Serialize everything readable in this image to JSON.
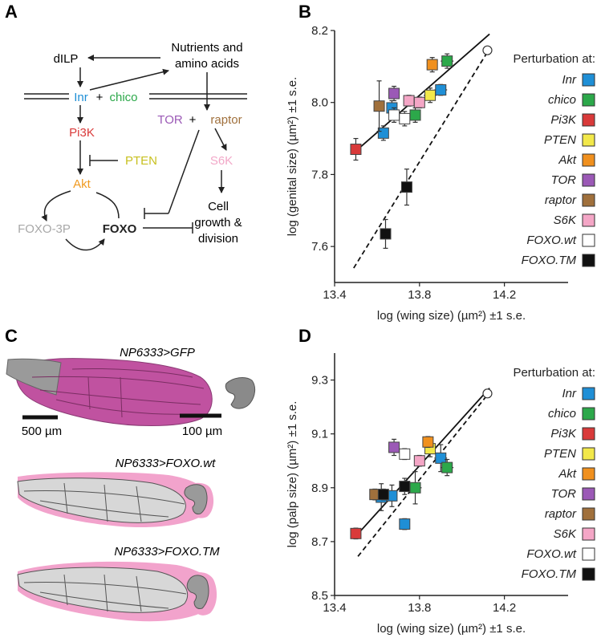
{
  "panels": {
    "A": "A",
    "B": "B",
    "C": "C",
    "D": "D"
  },
  "diagram": {
    "dilp": "dILP",
    "nutrients_line1": "Nutrients and",
    "nutrients_line2": "amino acids",
    "inr": "Inr",
    "plus1": "+",
    "chico": "chico",
    "pi3k": "Pi3K",
    "pten": "PTEN",
    "akt": "Akt",
    "tor": "TOR",
    "plus2": "+",
    "raptor": "raptor",
    "s6k": "S6K",
    "foxo3p": "FOXO-3P",
    "foxo": "FOXO",
    "cell_line1": "Cell",
    "cell_line2": "growth &",
    "cell_line3": "division",
    "colors": {
      "inr": "#1f8fd6",
      "chico": "#2ca84a",
      "pi3k": "#d93a3a",
      "pten": "#c8c020",
      "akt": "#f09a20",
      "tor": "#9b59b6",
      "raptor": "#a0703c",
      "s6k": "#f2a8c8",
      "foxo3p": "#a8a8a8",
      "foxo": "#222222"
    }
  },
  "panelC": {
    "label1": "NP6333>GFP",
    "label2": "NP6333>FOXO.wt",
    "label3": "NP6333>FOXO.TM",
    "scale_wing": "500 µm",
    "scale_genital": "100 µm"
  },
  "legend": {
    "title": "Perturbation at:",
    "entries": [
      {
        "name": "Inr",
        "color": "#1f8fd6"
      },
      {
        "name": "chico",
        "color": "#2ca84a"
      },
      {
        "name": "Pi3K",
        "color": "#d93a3a"
      },
      {
        "name": "PTEN",
        "color": "#f2e84a"
      },
      {
        "name": "Akt",
        "color": "#f0901e"
      },
      {
        "name": "TOR",
        "color": "#9b59b6"
      },
      {
        "name": "raptor",
        "color": "#a0703c"
      },
      {
        "name": "S6K",
        "color": "#f4a6c6"
      },
      {
        "name": "FOXO.wt",
        "color": "#ffffff"
      },
      {
        "name": "FOXO.TM",
        "color": "#111111"
      }
    ]
  },
  "chart_data": [
    {
      "type": "scatter",
      "panel": "B",
      "xlabel": "log (wing size) (µm²) ±1 s.e.",
      "ylabel": "log (genital size) (µm²) ±1 s.e.",
      "xlim": [
        13.4,
        14.5
      ],
      "ylim": [
        7.5,
        8.2
      ],
      "xticks": [
        "13.4",
        "13.8",
        "14.2"
      ],
      "yticks": [
        "7.6",
        "7.8",
        "8.0",
        "8.2"
      ],
      "points": [
        {
          "group": "Inr",
          "x": 13.63,
          "y": 7.915,
          "xerr": 0.02,
          "yerr": 0.02
        },
        {
          "group": "Inr",
          "x": 13.67,
          "y": 7.985,
          "xerr": 0.02,
          "yerr": 0.02
        },
        {
          "group": "Inr",
          "x": 13.9,
          "y": 8.035,
          "xerr": 0.03,
          "yerr": 0.015
        },
        {
          "group": "chico",
          "x": 13.78,
          "y": 7.965,
          "xerr": 0.02,
          "yerr": 0.02
        },
        {
          "group": "chico",
          "x": 13.93,
          "y": 8.115,
          "xerr": 0.03,
          "yerr": 0.02
        },
        {
          "group": "Pi3K",
          "x": 13.5,
          "y": 7.87,
          "xerr": 0.02,
          "yerr": 0.03
        },
        {
          "group": "PTEN",
          "x": 13.85,
          "y": 8.02,
          "xerr": 0.03,
          "yerr": 0.02
        },
        {
          "group": "Akt",
          "x": 13.86,
          "y": 8.105,
          "xerr": 0.02,
          "yerr": 0.02
        },
        {
          "group": "TOR",
          "x": 13.68,
          "y": 8.025,
          "xerr": 0.02,
          "yerr": 0.02
        },
        {
          "group": "raptor",
          "x": 13.61,
          "y": 7.99,
          "xerr": 0.02,
          "yerr": 0.07
        },
        {
          "group": "S6K",
          "x": 13.75,
          "y": 8.005,
          "xerr": 0.02,
          "yerr": 0.015
        },
        {
          "group": "S6K",
          "x": 13.8,
          "y": 8.0,
          "xerr": 0.02,
          "yerr": 0.015
        },
        {
          "group": "FOXO.wt",
          "x": 13.68,
          "y": 7.965,
          "xerr": 0.02,
          "yerr": 0.02
        },
        {
          "group": "FOXO.wt",
          "x": 13.73,
          "y": 7.955,
          "xerr": 0.02,
          "yerr": 0.02
        },
        {
          "group": "FOXO.wt",
          "x": 14.12,
          "y": 8.145,
          "xerr": 0.01,
          "yerr": 0.01
        },
        {
          "group": "FOXO.TM",
          "x": 13.74,
          "y": 7.765,
          "xerr": 0.02,
          "yerr": 0.05
        },
        {
          "group": "FOXO.TM",
          "x": 13.64,
          "y": 7.635,
          "xerr": 0.01,
          "yerr": 0.04
        }
      ],
      "lines": [
        {
          "style": "solid",
          "x": [
            13.49,
            14.13
          ],
          "y": [
            7.86,
            8.19
          ]
        },
        {
          "style": "dashed",
          "x": [
            13.49,
            14.12
          ],
          "y": [
            7.54,
            8.14
          ]
        }
      ]
    },
    {
      "type": "scatter",
      "panel": "D",
      "xlabel": "log (wing size) (µm²) ±1 s.e.",
      "ylabel": "log (palp size) (µm²) ±1 s.e.",
      "xlim": [
        13.4,
        14.5
      ],
      "ylim": [
        8.5,
        9.4
      ],
      "xticks": [
        "13.4",
        "13.8",
        "14.2"
      ],
      "yticks": [
        "8.5",
        "8.7",
        "8.9",
        "9.1",
        "9.3"
      ],
      "points": [
        {
          "group": "Inr",
          "x": 13.62,
          "y": 8.865,
          "xerr": 0.02,
          "yerr": 0.05
        },
        {
          "group": "Inr",
          "x": 13.67,
          "y": 8.87,
          "xerr": 0.02,
          "yerr": 0.04
        },
        {
          "group": "Inr",
          "x": 13.73,
          "y": 8.765,
          "xerr": 0.02,
          "yerr": 0.02
        },
        {
          "group": "Inr",
          "x": 13.9,
          "y": 9.01,
          "xerr": 0.03,
          "yerr": 0.05
        },
        {
          "group": "chico",
          "x": 13.78,
          "y": 8.9,
          "xerr": 0.03,
          "yerr": 0.06
        },
        {
          "group": "chico",
          "x": 13.93,
          "y": 8.975,
          "xerr": 0.03,
          "yerr": 0.03
        },
        {
          "group": "Pi3K",
          "x": 13.5,
          "y": 8.73,
          "xerr": 0.02,
          "yerr": 0.02
        },
        {
          "group": "PTEN",
          "x": 13.85,
          "y": 9.045,
          "xerr": 0.02,
          "yerr": 0.03
        },
        {
          "group": "Akt",
          "x": 13.84,
          "y": 9.07,
          "xerr": 0.02,
          "yerr": 0.02
        },
        {
          "group": "TOR",
          "x": 13.68,
          "y": 9.05,
          "xerr": 0.02,
          "yerr": 0.03
        },
        {
          "group": "raptor",
          "x": 13.59,
          "y": 8.875,
          "xerr": 0.02,
          "yerr": 0.02
        },
        {
          "group": "S6K",
          "x": 13.8,
          "y": 9.0,
          "xerr": 0.02,
          "yerr": 0.02
        },
        {
          "group": "FOXO.wt",
          "x": 13.73,
          "y": 9.025,
          "xerr": 0.02,
          "yerr": 0.02
        },
        {
          "group": "FOXO.wt",
          "x": 14.12,
          "y": 9.25,
          "xerr": 0.01,
          "yerr": 0.015
        },
        {
          "group": "FOXO.TM",
          "x": 13.73,
          "y": 8.905,
          "xerr": 0.02,
          "yerr": 0.03
        },
        {
          "group": "FOXO.TM",
          "x": 13.63,
          "y": 8.875,
          "xerr": 0.02,
          "yerr": 0.02
        }
      ],
      "lines": [
        {
          "style": "solid",
          "x": [
            13.5,
            14.13
          ],
          "y": [
            8.72,
            9.27
          ]
        },
        {
          "style": "dashed",
          "x": [
            13.51,
            14.12
          ],
          "y": [
            8.645,
            9.245
          ]
        }
      ]
    }
  ]
}
